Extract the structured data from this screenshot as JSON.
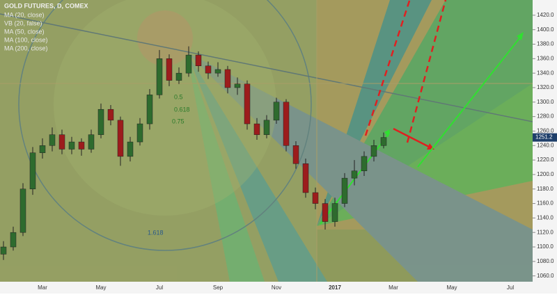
{
  "chart_data": {
    "type": "candlestick",
    "title": "GOLD FUTURES, D, COMEX",
    "legend": [
      "MA (20, close)",
      "VB (20, false)",
      "MA (50, close)",
      "MA (100, close)",
      "MA (200, close)"
    ],
    "annotations": [
      "0.5",
      "0.618",
      "0.75",
      "1.618"
    ],
    "up_color": "#2e6b2e",
    "down_color": "#9c1c1c",
    "categories": [
      null,
      null,
      null,
      null,
      "Mar",
      null,
      null,
      null,
      null,
      null,
      "May",
      null,
      null,
      null,
      null,
      null,
      "Jul",
      null,
      null,
      null,
      null,
      null,
      "Sep",
      null,
      null,
      null,
      null,
      null,
      "Nov",
      null,
      null,
      null,
      null,
      null,
      "2017",
      null,
      null,
      null,
      null,
      null,
      "Mar",
      null,
      null,
      null,
      null,
      null,
      "May",
      null,
      null,
      null,
      null,
      null,
      "Jul",
      null,
      null,
      null
    ],
    "open": [
      1090,
      1100,
      1120,
      1180,
      1230,
      1240,
      1255,
      1235,
      1245,
      1235,
      1255,
      1290,
      1275,
      1225,
      1245,
      1270,
      1310,
      1360,
      1330,
      1340,
      1365,
      1350,
      1340,
      1345,
      1320,
      1325,
      1270,
      1255,
      1275,
      1300,
      1240,
      1215,
      1175,
      1160,
      1135,
      1160,
      1195,
      1205,
      1225,
      1240,
      null,
      null,
      null,
      null,
      null,
      null,
      null,
      null,
      null,
      null,
      null,
      null,
      null,
      null,
      null,
      null
    ],
    "high": [
      1108,
      1128,
      1188,
      1238,
      1250,
      1265,
      1262,
      1252,
      1250,
      1262,
      1298,
      1296,
      1280,
      1252,
      1278,
      1318,
      1372,
      1366,
      1348,
      1377,
      1370,
      1356,
      1355,
      1350,
      1334,
      1330,
      1278,
      1282,
      1306,
      1304,
      1246,
      1222,
      1182,
      1166,
      1168,
      1202,
      1220,
      1232,
      1248,
      1258,
      null,
      null,
      null,
      null,
      null,
      null,
      null,
      null,
      null,
      null,
      null,
      null,
      null,
      null,
      null,
      null
    ],
    "low": [
      1082,
      1095,
      1115,
      1172,
      1222,
      1232,
      1228,
      1228,
      1226,
      1230,
      1250,
      1268,
      1212,
      1218,
      1240,
      1262,
      1305,
      1322,
      1325,
      1335,
      1342,
      1332,
      1335,
      1312,
      1310,
      1262,
      1248,
      1250,
      1270,
      1232,
      1208,
      1168,
      1152,
      1124,
      1128,
      1155,
      1185,
      1198,
      1218,
      1236,
      null,
      null,
      null,
      null,
      null,
      null,
      null,
      null,
      null,
      null,
      null,
      null,
      null,
      null,
      null,
      null
    ],
    "close": [
      1100,
      1120,
      1180,
      1230,
      1240,
      1255,
      1235,
      1245,
      1235,
      1255,
      1290,
      1275,
      1225,
      1245,
      1270,
      1310,
      1360,
      1330,
      1340,
      1365,
      1350,
      1340,
      1345,
      1320,
      1325,
      1270,
      1255,
      1275,
      1300,
      1240,
      1215,
      1175,
      1160,
      1135,
      1160,
      1195,
      1205,
      1225,
      1240,
      1251.2,
      null,
      null,
      null,
      null,
      null,
      null,
      null,
      null,
      null,
      null,
      null,
      null,
      null,
      null,
      null,
      null
    ],
    "ylim": [
      1052,
      1441
    ],
    "yticks": [
      {
        "value": 1060,
        "label": "1060.0"
      },
      {
        "value": 1080,
        "label": "1080.0"
      },
      {
        "value": 1100,
        "label": "1100.0"
      },
      {
        "value": 1120,
        "label": "1120.0"
      },
      {
        "value": 1140,
        "label": "1140.0"
      },
      {
        "value": 1160,
        "label": "1160.0"
      },
      {
        "value": 1180,
        "label": "1180.0"
      },
      {
        "value": 1200,
        "label": "1200.0"
      },
      {
        "value": 1220,
        "label": "1220.0"
      },
      {
        "value": 1240,
        "label": "1240.0"
      },
      {
        "value": 1260,
        "label": "1260.0"
      },
      {
        "value": 1280,
        "label": "1280.0"
      },
      {
        "value": 1300,
        "label": "1300.0"
      },
      {
        "value": 1320,
        "label": "1320.0"
      },
      {
        "value": 1340,
        "label": "1340.0"
      },
      {
        "value": 1360,
        "label": "1360.0"
      },
      {
        "value": 1380,
        "label": "1380.0"
      },
      {
        "value": 1400,
        "label": "1400.0"
      },
      {
        "value": 1420,
        "label": "1420.0"
      }
    ]
  }
}
